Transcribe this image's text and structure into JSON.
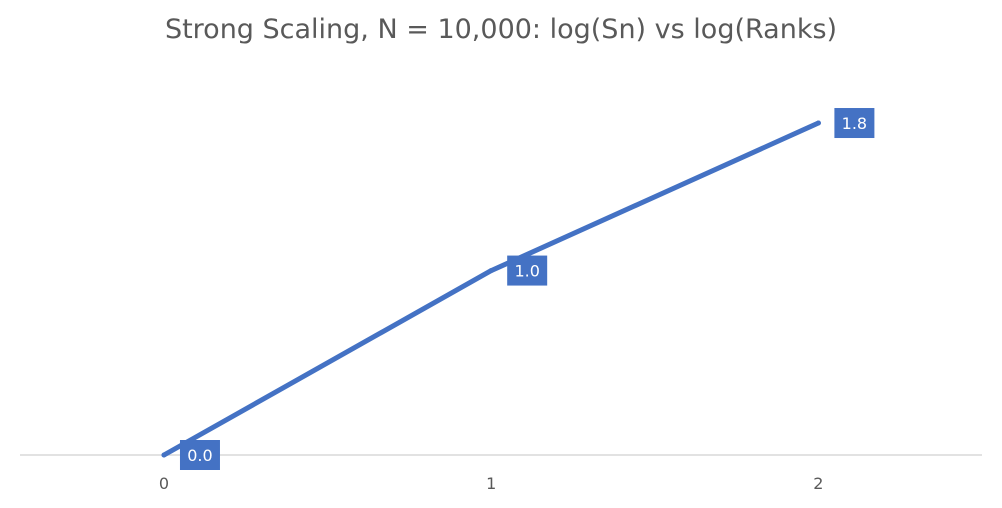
{
  "chart_data": {
    "type": "line",
    "title": "Strong Scaling, N = 10,000: log(Sn) vs log(Ranks)",
    "xlabel": "",
    "ylabel": "",
    "x": [
      0,
      1,
      2
    ],
    "x_tick_labels": [
      "0",
      "1",
      "2"
    ],
    "series": [
      {
        "values": [
          0.0,
          1.0,
          1.8
        ],
        "data_labels": [
          "0.0",
          "1.0",
          "1.8"
        ]
      }
    ],
    "xlim": [
      -0.44,
      2.5
    ],
    "ylim": [
      0,
      2.12
    ],
    "grid": false,
    "legend": "none",
    "colors": {
      "line": "#4472C4",
      "label_bg": "#4472C4",
      "label_text": "#ffffff",
      "axis": "#D9D9D9",
      "tick_text": "#595959",
      "title_text": "#595959"
    }
  }
}
